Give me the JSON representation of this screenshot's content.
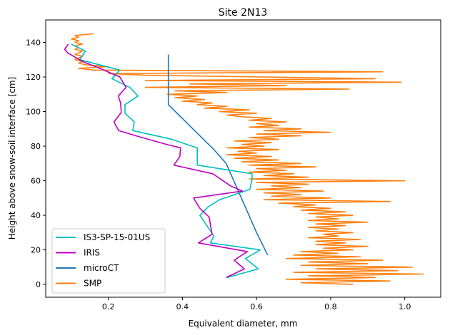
{
  "chart_data": {
    "type": "line",
    "title": "Site 2N13",
    "xlabel": "Equivalent diameter, mm",
    "ylabel": "Height above snow-soil interface [cm]",
    "xlim": [
      0.031,
      1.097
    ],
    "ylim": [
      -7.4,
      153
    ],
    "xticks": [
      0.2,
      0.4,
      0.6,
      0.8,
      1.0
    ],
    "xtick_labels": [
      "0.2",
      "0.4",
      "0.6",
      "0.8",
      "1.0"
    ],
    "yticks": [
      0,
      20,
      40,
      60,
      80,
      100,
      120,
      140
    ],
    "ytick_labels": [
      "0",
      "20",
      "40",
      "60",
      "80",
      "100",
      "120",
      "140"
    ],
    "grid": false,
    "legend_placement": "lower-left",
    "series": [
      {
        "name": "IS3-SP-15-01US",
        "color": "#00bfbf",
        "points": [
          [
            0.1,
            139
          ],
          [
            0.138,
            135
          ],
          [
            0.123,
            130
          ],
          [
            0.231,
            124
          ],
          [
            0.21,
            119
          ],
          [
            0.258,
            114
          ],
          [
            0.28,
            109
          ],
          [
            0.245,
            104
          ],
          [
            0.245,
            99
          ],
          [
            0.27,
            94
          ],
          [
            0.266,
            89
          ],
          [
            0.37,
            84
          ],
          [
            0.44,
            79
          ],
          [
            0.44,
            69
          ],
          [
            0.588,
            64
          ],
          [
            0.588,
            61
          ],
          [
            0.582,
            55
          ],
          [
            0.5,
            49
          ],
          [
            0.47,
            45
          ],
          [
            0.447,
            40
          ],
          [
            0.485,
            28
          ],
          [
            0.475,
            24
          ],
          [
            0.61,
            20
          ],
          [
            0.57,
            15
          ],
          [
            0.605,
            9
          ],
          [
            0.52,
            4
          ]
        ]
      },
      {
        "name": "IRIS",
        "color": "#bf00bf",
        "points": [
          [
            0.092,
            139
          ],
          [
            0.082,
            136
          ],
          [
            0.09,
            134
          ],
          [
            0.13,
            129
          ],
          [
            0.177,
            125
          ],
          [
            0.231,
            120
          ],
          [
            0.248,
            114
          ],
          [
            0.227,
            109
          ],
          [
            0.233,
            105
          ],
          [
            0.235,
            99.5
          ],
          [
            0.215,
            94
          ],
          [
            0.228,
            89
          ],
          [
            0.29,
            85
          ],
          [
            0.357,
            81
          ],
          [
            0.395,
            79
          ],
          [
            0.393,
            74
          ],
          [
            0.377,
            69
          ],
          [
            0.482,
            64
          ],
          [
            0.53,
            57
          ],
          [
            0.562,
            54
          ],
          [
            0.43,
            50
          ],
          [
            0.447,
            44
          ],
          [
            0.472,
            39
          ],
          [
            0.48,
            29
          ],
          [
            0.443,
            24
          ],
          [
            0.575,
            19
          ],
          [
            0.54,
            14
          ],
          [
            0.567,
            9
          ],
          [
            0.518,
            4
          ]
        ]
      },
      {
        "name": "microCT",
        "color": "#1f77b4",
        "points": [
          [
            0.362,
            133
          ],
          [
            0.362,
            104
          ],
          [
            0.485,
            78
          ],
          [
            0.518,
            70
          ],
          [
            0.6,
            30
          ],
          [
            0.63,
            17
          ]
        ]
      },
      {
        "name": "SMP",
        "color": "#ff7f0e",
        "points": [
          [
            0.16,
            145
          ],
          [
            0.11,
            144
          ],
          [
            0.12,
            143
          ],
          [
            0.1,
            142
          ],
          [
            0.12,
            141
          ],
          [
            0.11,
            140
          ],
          [
            0.13,
            139
          ],
          [
            0.11,
            138
          ],
          [
            0.12,
            137
          ],
          [
            0.11,
            136
          ],
          [
            0.13,
            135
          ],
          [
            0.12,
            134
          ],
          [
            0.11,
            133
          ],
          [
            0.13,
            132
          ],
          [
            0.12,
            131
          ],
          [
            0.11,
            130
          ],
          [
            0.13,
            129
          ],
          [
            0.12,
            128
          ],
          [
            0.14,
            127
          ],
          [
            0.2,
            126
          ],
          [
            0.12,
            125
          ],
          [
            0.16,
            124
          ],
          [
            0.94,
            123
          ],
          [
            0.2,
            122
          ],
          [
            0.3,
            121
          ],
          [
            0.62,
            120
          ],
          [
            0.92,
            119
          ],
          [
            0.3,
            118
          ],
          [
            0.99,
            117
          ],
          [
            0.42,
            116
          ],
          [
            0.68,
            115
          ],
          [
            0.3,
            114
          ],
          [
            0.85,
            113
          ],
          [
            0.38,
            112
          ],
          [
            0.52,
            111
          ],
          [
            0.36,
            110
          ],
          [
            0.44,
            109
          ],
          [
            0.38,
            108
          ],
          [
            0.46,
            107
          ],
          [
            0.4,
            106
          ],
          [
            0.48,
            105
          ],
          [
            0.44,
            104
          ],
          [
            0.52,
            103
          ],
          [
            0.46,
            102
          ],
          [
            0.58,
            101
          ],
          [
            0.5,
            100
          ],
          [
            0.6,
            99
          ],
          [
            0.52,
            98
          ],
          [
            0.56,
            97
          ],
          [
            0.64,
            96
          ],
          [
            0.58,
            95
          ],
          [
            0.68,
            94
          ],
          [
            0.6,
            93
          ],
          [
            0.66,
            92
          ],
          [
            0.58,
            91
          ],
          [
            0.72,
            90
          ],
          [
            0.62,
            89
          ],
          [
            0.8,
            88
          ],
          [
            0.6,
            87
          ],
          [
            0.72,
            86
          ],
          [
            0.58,
            85
          ],
          [
            0.66,
            84
          ],
          [
            0.54,
            83
          ],
          [
            0.64,
            82
          ],
          [
            0.56,
            81
          ],
          [
            0.62,
            80
          ],
          [
            0.52,
            79
          ],
          [
            0.66,
            78
          ],
          [
            0.55,
            77
          ],
          [
            0.6,
            76
          ],
          [
            0.52,
            75
          ],
          [
            0.64,
            74
          ],
          [
            0.54,
            73
          ],
          [
            0.66,
            72
          ],
          [
            0.56,
            71
          ],
          [
            0.72,
            70
          ],
          [
            0.58,
            69
          ],
          [
            0.76,
            68
          ],
          [
            0.6,
            67
          ],
          [
            0.68,
            66
          ],
          [
            0.58,
            65
          ],
          [
            0.7,
            64
          ],
          [
            0.62,
            63
          ],
          [
            0.74,
            62
          ],
          [
            0.58,
            61
          ],
          [
            1.0,
            60
          ],
          [
            0.6,
            59
          ],
          [
            0.74,
            58
          ],
          [
            0.64,
            57
          ],
          [
            0.72,
            56
          ],
          [
            0.6,
            55
          ],
          [
            0.78,
            54
          ],
          [
            0.62,
            53
          ],
          [
            0.72,
            52
          ],
          [
            0.64,
            51
          ],
          [
            0.8,
            50
          ],
          [
            0.62,
            49
          ],
          [
            0.96,
            48
          ],
          [
            0.66,
            47
          ],
          [
            0.76,
            46
          ],
          [
            0.7,
            45
          ],
          [
            0.8,
            44
          ],
          [
            0.72,
            43
          ],
          [
            0.84,
            42
          ],
          [
            0.74,
            41
          ],
          [
            0.86,
            40
          ],
          [
            0.76,
            39
          ],
          [
            0.82,
            38
          ],
          [
            0.74,
            37
          ],
          [
            0.9,
            36
          ],
          [
            0.76,
            35
          ],
          [
            0.84,
            34
          ],
          [
            0.74,
            33
          ],
          [
            0.82,
            32
          ],
          [
            0.76,
            31
          ],
          [
            0.86,
            30
          ],
          [
            0.78,
            29
          ],
          [
            0.82,
            28
          ],
          [
            0.74,
            27
          ],
          [
            0.88,
            26
          ],
          [
            0.76,
            25
          ],
          [
            0.84,
            24
          ],
          [
            0.76,
            23
          ],
          [
            0.9,
            22
          ],
          [
            0.78,
            21
          ],
          [
            0.86,
            20
          ],
          [
            0.72,
            19
          ],
          [
            0.82,
            18
          ],
          [
            0.7,
            17
          ],
          [
            0.88,
            16
          ],
          [
            0.68,
            15
          ],
          [
            0.94,
            14
          ],
          [
            0.74,
            13
          ],
          [
            0.9,
            12
          ],
          [
            0.72,
            11
          ],
          [
            1.02,
            10
          ],
          [
            0.76,
            9
          ],
          [
            0.98,
            8
          ],
          [
            0.7,
            7
          ],
          [
            1.05,
            6
          ],
          [
            0.74,
            5
          ],
          [
            0.92,
            4
          ],
          [
            0.68,
            3
          ],
          [
            0.96,
            2
          ],
          [
            0.72,
            1
          ],
          [
            0.86,
            0
          ]
        ]
      }
    ]
  }
}
